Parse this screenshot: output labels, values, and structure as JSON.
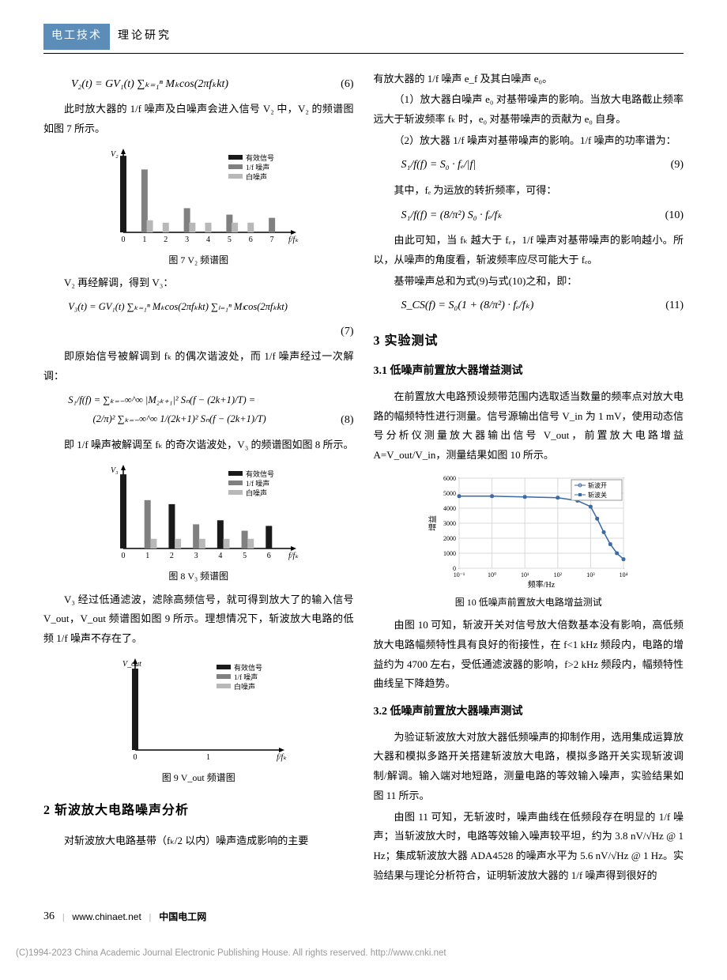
{
  "header": {
    "badge": "电工技术",
    "sub": "理论研究"
  },
  "leftCol": {
    "eq6": {
      "body": "V₂(t) = GV₁(t) ∑ₖ₌₁ⁿ Mₖcos(2πfₖkt)",
      "num": "(6)"
    },
    "p1": "此时放大器的 1/f 噪声及白噪声会进入信号 V₂ 中，V₂ 的频谱图如图 7 所示。",
    "fig7": {
      "caption": "图 7  V₂ 频谱图",
      "legend": [
        "有效信号",
        "1/f 噪声",
        "白噪声"
      ],
      "colors": {
        "signal": "#1a1a1a",
        "onef": "#808080",
        "white": "#b8b8b8",
        "axis": "#000"
      },
      "ticks": [
        "0",
        "1",
        "2",
        "3",
        "4",
        "5",
        "6",
        "7"
      ],
      "bars": [
        {
          "x": 0,
          "h": 0.95,
          "c": "signal"
        },
        {
          "x": 1,
          "h": 0.78,
          "c": "onef"
        },
        {
          "x": 1,
          "h": 0.15,
          "c": "white",
          "off": 0.25
        },
        {
          "x": 2,
          "h": 0.12,
          "c": "white"
        },
        {
          "x": 3,
          "h": 0.3,
          "c": "onef"
        },
        {
          "x": 3,
          "h": 0.12,
          "c": "white",
          "off": 0.25
        },
        {
          "x": 4,
          "h": 0.12,
          "c": "white"
        },
        {
          "x": 5,
          "h": 0.22,
          "c": "onef"
        },
        {
          "x": 5,
          "h": 0.12,
          "c": "white",
          "off": 0.25
        },
        {
          "x": 6,
          "h": 0.12,
          "c": "white"
        },
        {
          "x": 7,
          "h": 0.18,
          "c": "onef"
        }
      ],
      "xlabel": "f/fₖ",
      "ylabel": "V₂"
    },
    "p2": "V₂ 再经解调，得到 V₃：",
    "eq7": {
      "body": "V₃(t) = GV₁(t) ∑ₖ₌₁ⁿ Mₖcos(2πfₖkt) ∑ₗ₌₁ⁿ Mₗcos(2πfₖkt)",
      "num": "(7)"
    },
    "p3": "即原始信号被解调到 fₖ 的偶次谐波处，而 1/f 噪声经过一次解调：",
    "eq8": {
      "line1": "S₁/f(f) = ∑ₖ₌₋∞^∞ |M₂ₖ₊₁|² Sₙ(f − (2k+1)/T) =",
      "line2": "(2/π)² ∑ₖ₌₋∞^∞ 1/(2k+1)² Sₙ(f − (2k+1)/T)",
      "num": "(8)"
    },
    "p4": "即 1/f 噪声被解调至 fₖ 的奇次谐波处，V₃ 的频谱图如图 8 所示。",
    "fig8": {
      "caption": "图 8  V₃ 频谱图",
      "legend": [
        "有效信号",
        "1/f 噪声",
        "白噪声"
      ],
      "ticks": [
        "0",
        "1",
        "2",
        "3",
        "4",
        "5",
        "6"
      ],
      "bars": [
        {
          "x": 0,
          "h": 0.92,
          "c": "signal"
        },
        {
          "x": 1,
          "h": 0.6,
          "c": "onef"
        },
        {
          "x": 1,
          "h": 0.12,
          "c": "white",
          "off": 0.25
        },
        {
          "x": 2,
          "h": 0.55,
          "c": "signal"
        },
        {
          "x": 2,
          "h": 0.12,
          "c": "white",
          "off": 0.25
        },
        {
          "x": 3,
          "h": 0.3,
          "c": "onef"
        },
        {
          "x": 3,
          "h": 0.12,
          "c": "white",
          "off": 0.25
        },
        {
          "x": 4,
          "h": 0.35,
          "c": "signal"
        },
        {
          "x": 4,
          "h": 0.12,
          "c": "white",
          "off": 0.25
        },
        {
          "x": 5,
          "h": 0.22,
          "c": "onef"
        },
        {
          "x": 5,
          "h": 0.12,
          "c": "white",
          "off": 0.25
        },
        {
          "x": 6,
          "h": 0.28,
          "c": "signal"
        }
      ],
      "xlabel": "f/fₖ",
      "ylabel": "V₃"
    },
    "p5": "V₃ 经过低通滤波，滤除高频信号，就可得到放大了的输入信号 V_out，V_out 频谱图如图 9 所示。理想情况下，斩波放大电路的低频 1/f 噪声不存在了。",
    "fig9": {
      "caption": "图 9  V_out 频谱图",
      "legend": [
        "有效信号",
        "1/f 噪声",
        "白噪声"
      ],
      "ticks": [
        "0",
        "1"
      ],
      "bars": [
        {
          "x": 0,
          "h": 0.92,
          "c": "signal"
        }
      ],
      "xlabel": "f/fₖ",
      "ylabel": "V_out"
    },
    "h2_2": "2 斩波放大电路噪声分析",
    "p6": "对斩波放大电路基带（fₖ/2 以内）噪声造成影响的主要"
  },
  "rightCol": {
    "p0": "有放大器的 1/f 噪声 e_f 及其白噪声 e₀。",
    "p1": "（1）放大器白噪声 e₀ 对基带噪声的影响。当放大电路截止频率远大于斩波频率 fₖ 时，e₀ 对基带噪声的贡献为 e₀ 自身。",
    "p2": "（2）放大器 1/f 噪声对基带噪声的影响。1/f 噪声的功率谱为：",
    "eq9": {
      "body": "S₁/f(f) = S₀ · fₑ/|f|",
      "num": "(9)"
    },
    "p3": "其中，fₑ 为运放的转折频率，可得：",
    "eq10": {
      "body": "S₁/f(f) = (8/π²) S₀ · fₑ/fₖ",
      "num": "(10)"
    },
    "p4": "由此可知，当 fₖ 越大于 fₑ，1/f 噪声对基带噪声的影响越小。所以，从噪声的角度看，斩波频率应尽可能大于 fₑ。",
    "p5": "基带噪声总和为式(9)与式(10)之和，即：",
    "eq11": {
      "body": "S_CS(f) = S₀(1 + (8/π²) · fₑ/fₖ)",
      "num": "(11)"
    },
    "h2_3": "3 实验测试",
    "h3_31": "3.1 低噪声前置放大器增益测试",
    "p6": "在前置放大电路预设频带范围内选取适当数量的频率点对放大电路的幅频特性进行测量。信号源输出信号 V_in 为 1 mV，使用动态信号分析仪测量放大器输出信号 V_out，前置放大电路增益 A=V_out/V_in，测量结果如图 10 所示。",
    "fig10": {
      "caption": "图 10  低噪声前置放大电路增益测试",
      "legend": [
        "斩波开",
        "斩波关"
      ],
      "ylabel": "增益",
      "xlabel": "频率/Hz",
      "ylim": [
        0,
        6000
      ],
      "yticks": [
        0,
        1000,
        2000,
        3000,
        4000,
        5000,
        6000
      ],
      "xticks": [
        "10⁻¹",
        "10⁰",
        "10¹",
        "10²",
        "10³",
        "10⁴"
      ],
      "colors": {
        "line": "#3a6aa8",
        "grid": "#d8d8d8",
        "axis": "#000",
        "bg": "#fff"
      },
      "series": [
        {
          "name": "斩波开",
          "points": [
            [
              -1,
              4800
            ],
            [
              0,
              4800
            ],
            [
              1,
              4750
            ],
            [
              2,
              4700
            ],
            [
              2.6,
              4500
            ],
            [
              3,
              4100
            ],
            [
              3.2,
              3300
            ],
            [
              3.4,
              2400
            ],
            [
              3.6,
              1600
            ],
            [
              3.8,
              1000
            ],
            [
              4,
              600
            ]
          ]
        },
        {
          "name": "斩波关",
          "points": [
            [
              -1,
              4800
            ],
            [
              0,
              4800
            ],
            [
              1,
              4750
            ],
            [
              2,
              4700
            ],
            [
              2.6,
              4500
            ],
            [
              3,
              4100
            ],
            [
              3.2,
              3300
            ],
            [
              3.4,
              2400
            ],
            [
              3.6,
              1600
            ],
            [
              3.8,
              1000
            ],
            [
              4,
              600
            ]
          ]
        }
      ]
    },
    "p7": "由图 10 可知，斩波开关对信号放大倍数基本没有影响，高低频放大电路幅频特性具有良好的衔接性，在 f<1 kHz 频段内，电路的增益约为 4700 左右，受低通滤波器的影响，f>2 kHz 频段内，幅频特性曲线呈下降趋势。",
    "h3_32": "3.2 低噪声前置放大器噪声测试",
    "p8": "为验证斩波放大对放大器低频噪声的抑制作用，选用集成运算放大器和模拟多路开关搭建斩波放大电路，模拟多路开关实现斩波调制/解调。输入端对地短路，测量电路的等效输入噪声，实验结果如图 11 所示。",
    "p9": "由图 11 可知，无斩波时，噪声曲线在低频段存在明显的 1/f 噪声；当斩波放大时，电路等效输入噪声较平坦，约为 3.8 nV/√Hz @ 1 Hz；集成斩波放大器 ADA4528 的噪声水平为 5.6 nV/√Hz @ 1 Hz。实验结果与理论分析符合，证明斩波放大器的 1/f 噪声得到很好的"
  },
  "footer": {
    "page": "36",
    "url": "www.chinaet.net",
    "site": "中国电工网",
    "copyright": "(C)1994-2023 China Academic Journal Electronic Publishing House. All rights reserved.   http://www.cnki.net"
  }
}
